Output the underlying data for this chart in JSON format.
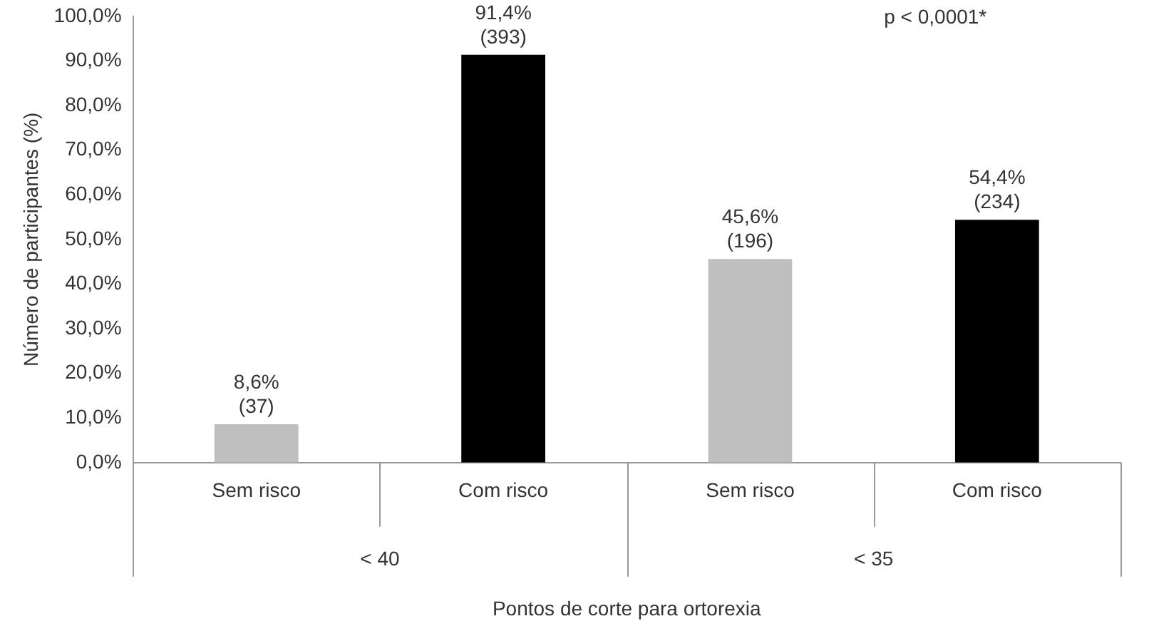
{
  "chart_data": {
    "type": "bar",
    "xlabel": "Pontos de corte para ortorexia",
    "ylabel": "Número de participantes (%)",
    "categories": [
      "Sem risco",
      "Com risco",
      "Sem risco",
      "Com risco"
    ],
    "values": [
      8.6,
      91.4,
      45.6,
      54.4
    ],
    "colors": [
      "#bfbfbf",
      "#000000",
      "#bfbfbf",
      "#000000"
    ],
    "value_labels": [
      "8,6%\n(37)",
      "91,4%\n(393)",
      "45,6%\n(196)",
      "54,4%\n(234)"
    ],
    "ylim": [
      0,
      100
    ],
    "yticks": [
      {
        "value": 0,
        "label": "0,0%"
      },
      {
        "value": 10,
        "label": "10,0%"
      },
      {
        "value": 20,
        "label": "20,0%"
      },
      {
        "value": 30,
        "label": "30,0%"
      },
      {
        "value": 40,
        "label": "40,0%"
      },
      {
        "value": 50,
        "label": "50,0%"
      },
      {
        "value": 60,
        "label": "60,0%"
      },
      {
        "value": 70,
        "label": "70,0%"
      },
      {
        "value": 80,
        "label": "80,0%"
      },
      {
        "value": 90,
        "label": "90,0%"
      },
      {
        "value": 100,
        "label": "100,0%"
      }
    ],
    "annotations": [
      "p < 0,0001*",
      "< 40",
      "< 35"
    ],
    "grid": false,
    "legend": false
  }
}
